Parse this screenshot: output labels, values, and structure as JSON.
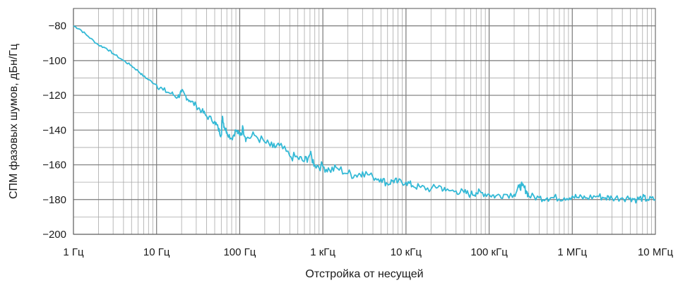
{
  "chart_data": {
    "type": "line",
    "xlabel": "Отстройка от несущей",
    "ylabel": "СПМ фазовых шумов, дБн/Гц",
    "x_scale": "log",
    "xlim": [
      1,
      10000000
    ],
    "ylim": [
      -200,
      -70
    ],
    "grid": true,
    "x_ticks": [
      {
        "value": 1,
        "label": "1 Гц"
      },
      {
        "value": 10,
        "label": "10 Гц"
      },
      {
        "value": 100,
        "label": "100 Гц"
      },
      {
        "value": 1000,
        "label": "1 кГц"
      },
      {
        "value": 10000,
        "label": "10 кГц"
      },
      {
        "value": 100000,
        "label": "100 кГц"
      },
      {
        "value": 1000000,
        "label": "1 МГц"
      },
      {
        "value": 10000000,
        "label": "10 МГц"
      }
    ],
    "y_ticks": [
      {
        "value": -80,
        "label": "−80"
      },
      {
        "value": -100,
        "label": "−100"
      },
      {
        "value": -120,
        "label": "−120"
      },
      {
        "value": -140,
        "label": "−140"
      },
      {
        "value": -160,
        "label": "−160"
      },
      {
        "value": -180,
        "label": "−180"
      },
      {
        "value": -200,
        "label": "−200"
      }
    ],
    "series": [
      {
        "color": "#33b9d6",
        "x": [
          1,
          1.2,
          1.5,
          2,
          2.5,
          3,
          4,
          5,
          6,
          7,
          8,
          10,
          12,
          15,
          18,
          20,
          22,
          25,
          30,
          35,
          40,
          50,
          55,
          60,
          62,
          65,
          70,
          80,
          90,
          100,
          110,
          120,
          150,
          200,
          250,
          300,
          400,
          500,
          600,
          700,
          800,
          1000,
          1200,
          1500,
          2000,
          2500,
          3000,
          4000,
          5000,
          6000,
          7000,
          8000,
          10000,
          12000,
          15000,
          20000,
          25000,
          30000,
          40000,
          50000,
          60000,
          70000,
          80000,
          100000,
          120000,
          150000,
          200000,
          230000,
          250000,
          280000,
          300000,
          400000,
          500000,
          600000,
          800000,
          1000000,
          1200000,
          1500000,
          2000000,
          2500000,
          3000000,
          4000000,
          5000000,
          6000000,
          7000000,
          8000000,
          10000000
        ],
        "y": [
          -80,
          -82,
          -86,
          -91,
          -93,
          -96,
          -100,
          -103,
          -106,
          -109,
          -111,
          -114,
          -117,
          -119,
          -121,
          -118,
          -120,
          -123,
          -126,
          -129,
          -132,
          -135,
          -139,
          -143,
          -132,
          -138,
          -141,
          -145,
          -140,
          -143,
          -139,
          -145,
          -143,
          -147,
          -150,
          -149,
          -155,
          -156,
          -158,
          -154,
          -160,
          -161,
          -163,
          -162,
          -165,
          -166,
          -164,
          -167,
          -168,
          -171,
          -169,
          -170,
          -170,
          -172,
          -173,
          -174,
          -172,
          -175,
          -175,
          -176,
          -177,
          -176,
          -176,
          -177,
          -178,
          -177,
          -177,
          -173,
          -172,
          -175,
          -178,
          -179,
          -179,
          -179,
          -179,
          -178,
          -179,
          -179,
          -178,
          -179,
          -179,
          -179,
          -179,
          -180,
          -179,
          -180,
          -180
        ]
      }
    ]
  }
}
